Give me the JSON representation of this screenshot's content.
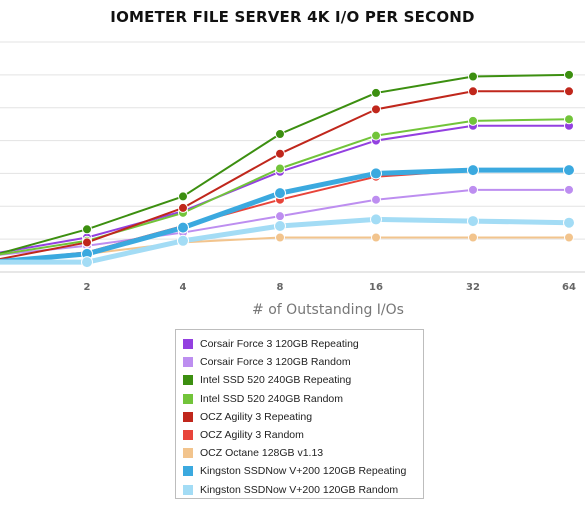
{
  "chart_data": {
    "type": "line",
    "title": "IOMETER FILE SERVER 4K I/O PER SECOND",
    "xlabel": "# of Outstanding I/Os",
    "ylabel": "",
    "x": [
      1,
      2,
      4,
      8,
      16,
      32,
      64
    ],
    "x_tick_labels": [
      "2",
      "4",
      "8",
      "16",
      "32",
      "64"
    ],
    "ylim": [
      0,
      8
    ],
    "grid": true,
    "legend_position": "bottom",
    "series": [
      {
        "name": "Corsair Force 3 120GB Repeating",
        "color": "#9340e0",
        "width": 2,
        "values": [
          0.55,
          1.05,
          1.85,
          3.05,
          4.0,
          4.45,
          4.45
        ]
      },
      {
        "name": "Corsair Force 3 120GB Random",
        "color": "#bd8ef0",
        "width": 2,
        "values": [
          0.5,
          0.8,
          1.2,
          1.7,
          2.2,
          2.5,
          2.5
        ]
      },
      {
        "name": "Intel SSD 520 240GB Repeating",
        "color": "#3c8f10",
        "width": 2,
        "values": [
          0.5,
          1.3,
          2.3,
          4.2,
          5.45,
          5.95,
          6.0
        ]
      },
      {
        "name": "Intel SSD 520 240GB Random",
        "color": "#72c43a",
        "width": 2,
        "values": [
          0.5,
          0.95,
          1.8,
          3.15,
          4.15,
          4.6,
          4.65
        ]
      },
      {
        "name": "OCZ Agility 3 Repeating",
        "color": "#c0271c",
        "width": 2,
        "values": [
          0.35,
          0.9,
          1.95,
          3.6,
          4.95,
          5.5,
          5.5
        ]
      },
      {
        "name": "OCZ Agility 3 Random",
        "color": "#e8443a",
        "width": 2,
        "values": [
          0.3,
          0.6,
          1.4,
          2.2,
          2.9,
          3.1,
          3.1
        ]
      },
      {
        "name": "OCZ Octane 128GB v1.13",
        "color": "#f2c48d",
        "width": 2,
        "values": [
          0.3,
          0.55,
          0.9,
          1.05,
          1.05,
          1.05,
          1.05
        ]
      },
      {
        "name": "Kingston SSDNow V+200 120GB Repeating",
        "color": "#3ba9df",
        "width": 5,
        "values": [
          0.3,
          0.55,
          1.35,
          2.4,
          3.0,
          3.1,
          3.1
        ]
      },
      {
        "name": "Kingston SSDNow V+200 120GB Random",
        "color": "#a3dcf5",
        "width": 5,
        "values": [
          0.3,
          0.3,
          0.95,
          1.4,
          1.6,
          1.55,
          1.5
        ]
      }
    ]
  }
}
